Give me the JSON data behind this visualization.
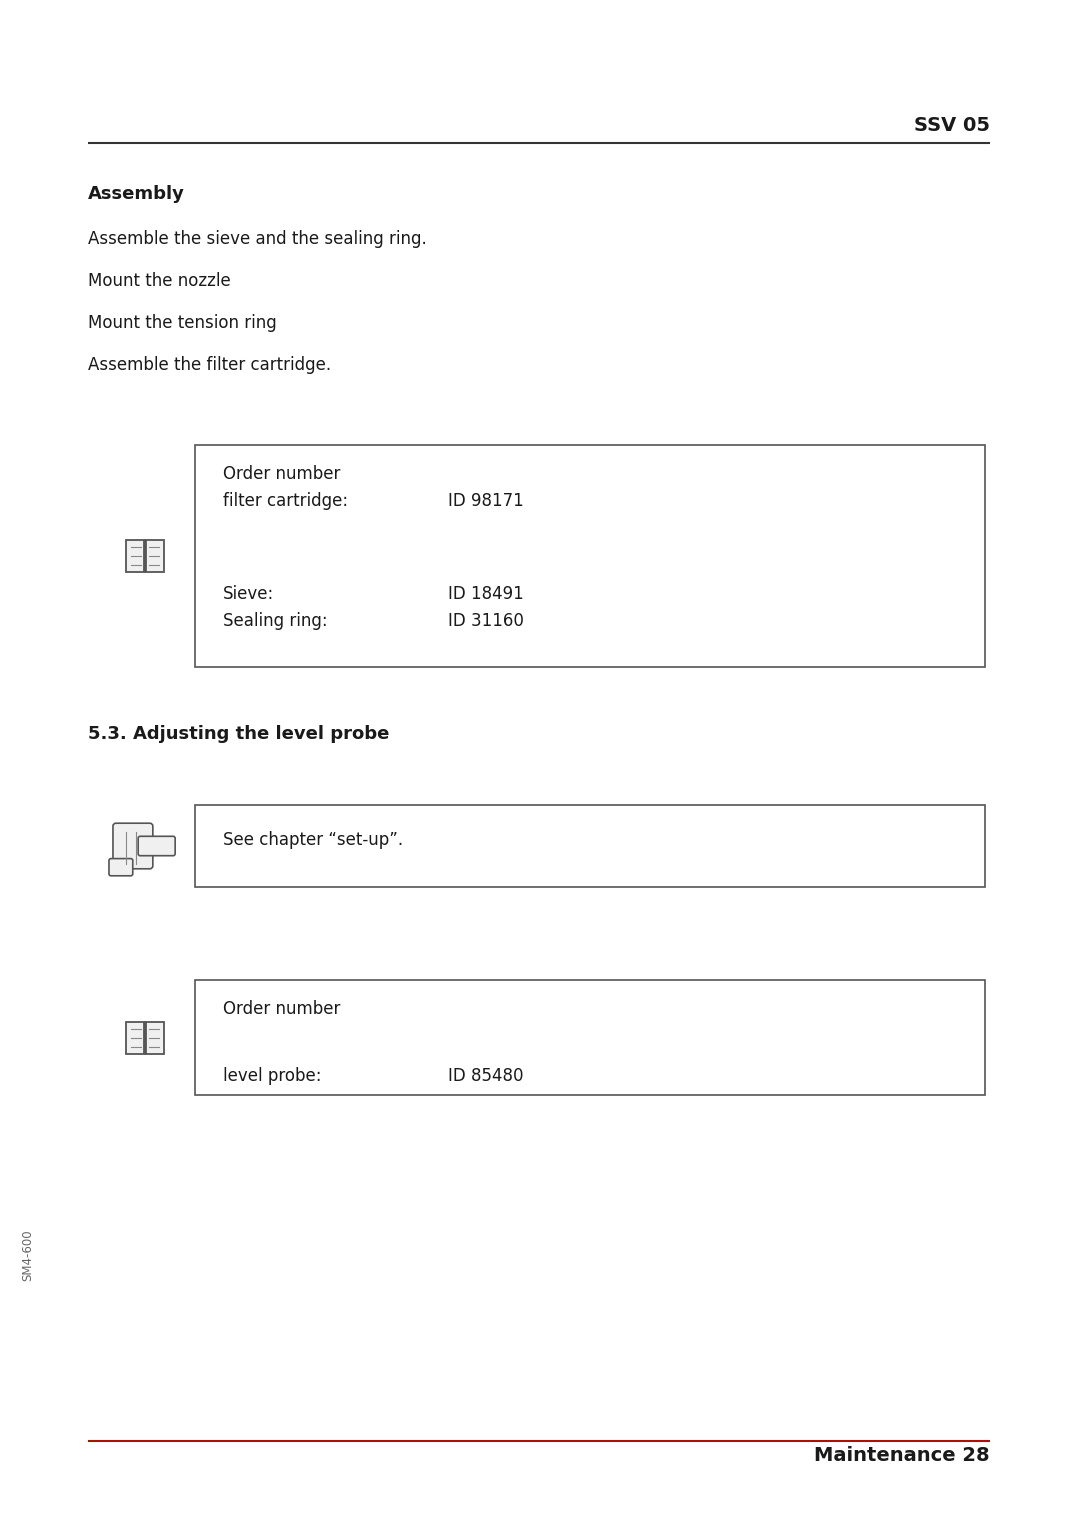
{
  "bg_color": "#ffffff",
  "text_color": "#1a1a1a",
  "header_text": "SSV 05",
  "footer_text": "Maintenance 28",
  "sidebar_text": "SM4-600",
  "assembly_title": "Assembly",
  "assembly_lines": [
    "Assemble the sieve and the sealing ring.",
    "Mount the nozzle",
    "Mount the tension ring",
    "Assemble the filter cartridge."
  ],
  "box1_line1": "Order number",
  "box1_line2a": "filter cartridge:",
  "box1_line2b": "ID 98171",
  "box1_line3a": "Sieve:",
  "box1_line3b": "ID 18491",
  "box1_line4a": "Sealing ring:",
  "box1_line4b": "ID 31160",
  "section_title": "5.3. Adjusting the level probe",
  "box2_content": "See chapter “set-up”.",
  "box3_line1": "Order number",
  "box3_line2a": "level probe:",
  "box3_line2b": "ID 85480"
}
